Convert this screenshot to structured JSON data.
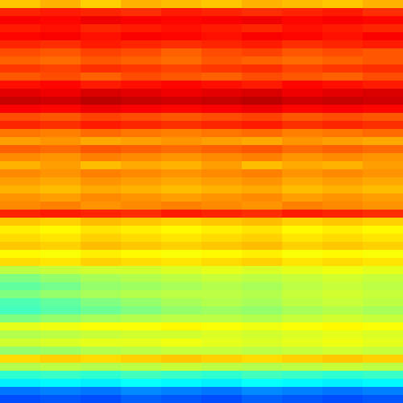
{
  "chart_data": {
    "type": "heatmap",
    "tick_labels": false,
    "zlim": [
      0,
      1
    ],
    "cells": [
      [
        0.68,
        0.7,
        0.67,
        0.7,
        0.69,
        0.68,
        0.7,
        0.69,
        0.68,
        0.7
      ],
      [
        0.84,
        0.85,
        0.84,
        0.83,
        0.85,
        0.84,
        0.83,
        0.84,
        0.85,
        0.83
      ],
      [
        0.88,
        0.87,
        0.89,
        0.88,
        0.87,
        0.88,
        0.89,
        0.87,
        0.88,
        0.87
      ],
      [
        0.85,
        0.86,
        0.84,
        0.85,
        0.86,
        0.85,
        0.84,
        0.86,
        0.85,
        0.84
      ],
      [
        0.87,
        0.88,
        0.86,
        0.88,
        0.87,
        0.86,
        0.88,
        0.87,
        0.86,
        0.88
      ],
      [
        0.84,
        0.83,
        0.85,
        0.84,
        0.83,
        0.84,
        0.85,
        0.83,
        0.84,
        0.85
      ],
      [
        0.8,
        0.79,
        0.81,
        0.8,
        0.78,
        0.8,
        0.81,
        0.79,
        0.8,
        0.79
      ],
      [
        0.78,
        0.77,
        0.79,
        0.78,
        0.77,
        0.79,
        0.78,
        0.77,
        0.78,
        0.79
      ],
      [
        0.82,
        0.81,
        0.83,
        0.82,
        0.81,
        0.82,
        0.83,
        0.81,
        0.82,
        0.83
      ],
      [
        0.79,
        0.8,
        0.78,
        0.8,
        0.79,
        0.78,
        0.8,
        0.79,
        0.78,
        0.8
      ],
      [
        0.86,
        0.87,
        0.85,
        0.86,
        0.87,
        0.86,
        0.85,
        0.87,
        0.86,
        0.85
      ],
      [
        0.9,
        0.89,
        0.91,
        0.9,
        0.89,
        0.9,
        0.91,
        0.89,
        0.9,
        0.91
      ],
      [
        0.93,
        0.92,
        0.94,
        0.93,
        0.92,
        0.93,
        0.94,
        0.92,
        0.93,
        0.92
      ],
      [
        0.88,
        0.87,
        0.89,
        0.88,
        0.87,
        0.88,
        0.89,
        0.87,
        0.88,
        0.87
      ],
      [
        0.8,
        0.79,
        0.81,
        0.8,
        0.79,
        0.8,
        0.81,
        0.79,
        0.8,
        0.79
      ],
      [
        0.84,
        0.83,
        0.85,
        0.84,
        0.83,
        0.84,
        0.85,
        0.83,
        0.84,
        0.83
      ],
      [
        0.76,
        0.75,
        0.77,
        0.76,
        0.75,
        0.76,
        0.77,
        0.75,
        0.76,
        0.77
      ],
      [
        0.72,
        0.73,
        0.71,
        0.72,
        0.73,
        0.72,
        0.71,
        0.73,
        0.72,
        0.71
      ],
      [
        0.78,
        0.77,
        0.79,
        0.78,
        0.77,
        0.78,
        0.79,
        0.77,
        0.78,
        0.77
      ],
      [
        0.74,
        0.73,
        0.75,
        0.74,
        0.73,
        0.74,
        0.75,
        0.73,
        0.74,
        0.73
      ],
      [
        0.7,
        0.72,
        0.69,
        0.71,
        0.7,
        0.72,
        0.69,
        0.71,
        0.7,
        0.72
      ],
      [
        0.74,
        0.73,
        0.75,
        0.74,
        0.73,
        0.74,
        0.75,
        0.73,
        0.74,
        0.73
      ],
      [
        0.72,
        0.71,
        0.73,
        0.72,
        0.71,
        0.72,
        0.73,
        0.71,
        0.72,
        0.71
      ],
      [
        0.7,
        0.69,
        0.71,
        0.7,
        0.69,
        0.7,
        0.71,
        0.69,
        0.7,
        0.69
      ],
      [
        0.73,
        0.72,
        0.74,
        0.73,
        0.72,
        0.73,
        0.74,
        0.72,
        0.73,
        0.72
      ],
      [
        0.74,
        0.75,
        0.73,
        0.74,
        0.75,
        0.74,
        0.73,
        0.75,
        0.74,
        0.73
      ],
      [
        0.84,
        0.85,
        0.84,
        0.83,
        0.85,
        0.84,
        0.83,
        0.85,
        0.84,
        0.83
      ],
      [
        0.68,
        0.67,
        0.69,
        0.68,
        0.67,
        0.68,
        0.69,
        0.67,
        0.68,
        0.67
      ],
      [
        0.64,
        0.63,
        0.65,
        0.64,
        0.63,
        0.64,
        0.65,
        0.63,
        0.64,
        0.63
      ],
      [
        0.66,
        0.65,
        0.67,
        0.66,
        0.65,
        0.66,
        0.67,
        0.65,
        0.66,
        0.65
      ],
      [
        0.68,
        0.67,
        0.69,
        0.68,
        0.67,
        0.68,
        0.69,
        0.67,
        0.68,
        0.67
      ],
      [
        0.63,
        0.62,
        0.64,
        0.63,
        0.62,
        0.63,
        0.64,
        0.62,
        0.63,
        0.62
      ],
      [
        0.66,
        0.65,
        0.67,
        0.66,
        0.65,
        0.66,
        0.67,
        0.65,
        0.66,
        0.65
      ],
      [
        0.56,
        0.57,
        0.58,
        0.58,
        0.59,
        0.6,
        0.59,
        0.6,
        0.61,
        0.6
      ],
      [
        0.5,
        0.52,
        0.54,
        0.55,
        0.56,
        0.57,
        0.56,
        0.57,
        0.58,
        0.57
      ],
      [
        0.47,
        0.49,
        0.52,
        0.53,
        0.54,
        0.55,
        0.54,
        0.56,
        0.57,
        0.56
      ],
      [
        0.5,
        0.52,
        0.54,
        0.55,
        0.56,
        0.56,
        0.55,
        0.57,
        0.58,
        0.57
      ],
      [
        0.45,
        0.47,
        0.5,
        0.52,
        0.54,
        0.55,
        0.54,
        0.56,
        0.57,
        0.56
      ],
      [
        0.44,
        0.46,
        0.48,
        0.5,
        0.52,
        0.53,
        0.52,
        0.54,
        0.55,
        0.54
      ],
      [
        0.5,
        0.52,
        0.54,
        0.55,
        0.56,
        0.56,
        0.55,
        0.57,
        0.58,
        0.57
      ],
      [
        0.6,
        0.61,
        0.62,
        0.62,
        0.63,
        0.62,
        0.61,
        0.62,
        0.63,
        0.62
      ],
      [
        0.55,
        0.56,
        0.57,
        0.58,
        0.58,
        0.59,
        0.58,
        0.59,
        0.6,
        0.59
      ],
      [
        0.58,
        0.59,
        0.6,
        0.6,
        0.61,
        0.6,
        0.59,
        0.6,
        0.61,
        0.6
      ],
      [
        0.52,
        0.53,
        0.55,
        0.56,
        0.57,
        0.57,
        0.56,
        0.57,
        0.58,
        0.57
      ],
      [
        0.66,
        0.67,
        0.66,
        0.67,
        0.68,
        0.67,
        0.66,
        0.67,
        0.68,
        0.67
      ],
      [
        0.55,
        0.56,
        0.55,
        0.56,
        0.57,
        0.56,
        0.55,
        0.56,
        0.57,
        0.56
      ],
      [
        0.42,
        0.43,
        0.42,
        0.44,
        0.43,
        0.42,
        0.44,
        0.43,
        0.42,
        0.43
      ],
      [
        0.36,
        0.37,
        0.36,
        0.38,
        0.37,
        0.36,
        0.38,
        0.37,
        0.36,
        0.37
      ],
      [
        0.24,
        0.25,
        0.24,
        0.26,
        0.25,
        0.24,
        0.26,
        0.25,
        0.24,
        0.25
      ],
      [
        0.2,
        0.21,
        0.2,
        0.22,
        0.21,
        0.2,
        0.22,
        0.21,
        0.2,
        0.21
      ]
    ]
  }
}
